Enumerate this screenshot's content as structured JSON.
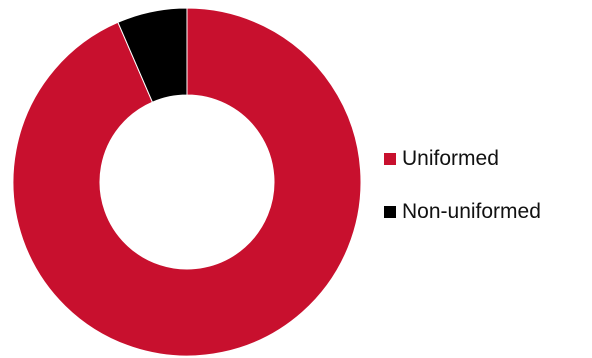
{
  "chart_data": {
    "type": "pie",
    "donut": true,
    "title": "",
    "slices": [
      {
        "label": "Uniformed",
        "value": 93.5,
        "color": "#c8102e"
      },
      {
        "label": "Non-uniformed",
        "value": 6.5,
        "color": "#000000"
      }
    ],
    "legend": {
      "position": "right",
      "items": [
        {
          "label": "Uniformed",
          "color": "#c8102e"
        },
        {
          "label": "Non-uniformed",
          "color": "#000000"
        }
      ]
    }
  }
}
